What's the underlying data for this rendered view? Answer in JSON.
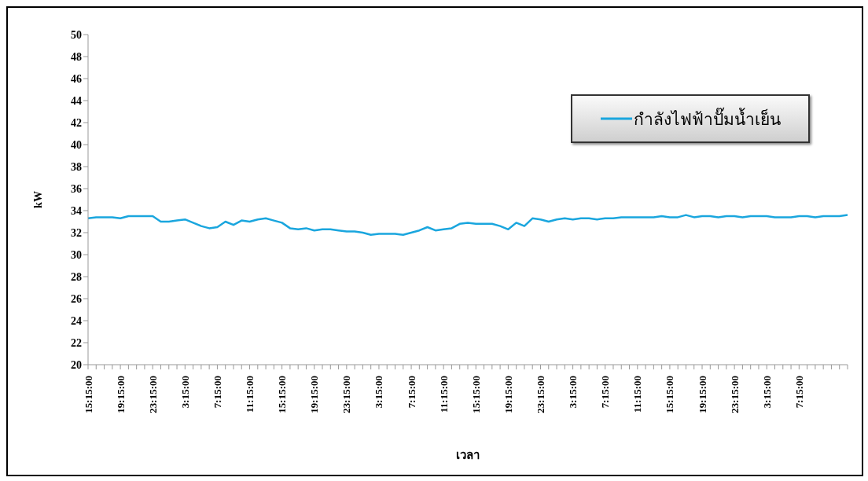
{
  "chart_data": {
    "type": "line",
    "xlabel": "เวลา",
    "ylabel": "kW",
    "categories": [
      "15:15:00",
      null,
      null,
      null,
      "19:15:00",
      null,
      null,
      null,
      "23:15:00",
      null,
      null,
      null,
      "3:15:00",
      null,
      null,
      null,
      "7:15:00",
      null,
      null,
      null,
      "11:15:00",
      null,
      null,
      null,
      "15:15:00",
      null,
      null,
      null,
      "19:15:00",
      null,
      null,
      null,
      "23:15:00",
      null,
      null,
      null,
      "3:15:00",
      null,
      null,
      null,
      "7:15:00",
      null,
      null,
      null,
      "11:15:00",
      null,
      null,
      null,
      "15:15:00",
      null,
      null,
      null,
      "19:15:00",
      null,
      null,
      null,
      "23:15:00",
      null,
      null,
      null,
      "3:15:00",
      null,
      null,
      null,
      "7:15:00",
      null,
      null,
      null,
      "11:15:00",
      null,
      null,
      null,
      "15:15:00",
      null,
      null,
      null,
      "19:15:00",
      null,
      null,
      null,
      "23:15:00",
      null,
      null,
      null,
      "3:15:00",
      null,
      null,
      null,
      "7:15:00",
      null,
      null,
      null,
      null,
      null,
      null
    ],
    "series": [
      {
        "name": "กำลังไฟฟ้าปั๊มน้ำเย็น",
        "color": "#1aa6de",
        "values": [
          33.3,
          33.4,
          33.4,
          33.4,
          33.3,
          33.5,
          33.5,
          33.5,
          33.5,
          33.0,
          33.0,
          33.1,
          33.2,
          32.9,
          32.6,
          32.4,
          32.5,
          33.0,
          32.7,
          33.1,
          33.0,
          33.2,
          33.3,
          33.1,
          32.9,
          32.4,
          32.3,
          32.4,
          32.2,
          32.3,
          32.3,
          32.2,
          32.1,
          32.1,
          32.0,
          31.8,
          31.9,
          31.9,
          31.9,
          31.8,
          32.0,
          32.2,
          32.5,
          32.2,
          32.3,
          32.4,
          32.8,
          32.9,
          32.8,
          32.8,
          32.8,
          32.6,
          32.3,
          32.9,
          32.6,
          33.3,
          33.2,
          33.0,
          33.2,
          33.3,
          33.2,
          33.3,
          33.3,
          33.2,
          33.3,
          33.3,
          33.4,
          33.4,
          33.4,
          33.4,
          33.4,
          33.5,
          33.4,
          33.4,
          33.6,
          33.4,
          33.5,
          33.5,
          33.4,
          33.5,
          33.5,
          33.4,
          33.5,
          33.5,
          33.5,
          33.4,
          33.4,
          33.4,
          33.5,
          33.5,
          33.4,
          33.5,
          33.5,
          33.5,
          33.6
        ]
      }
    ],
    "ylim": [
      20,
      50
    ],
    "yticks": [
      20,
      22,
      24,
      26,
      28,
      30,
      32,
      34,
      36,
      38,
      40,
      42,
      44,
      46,
      48,
      50
    ],
    "grid": false,
    "legend": "top right",
    "marker": "none",
    "line_style": "solid"
  }
}
